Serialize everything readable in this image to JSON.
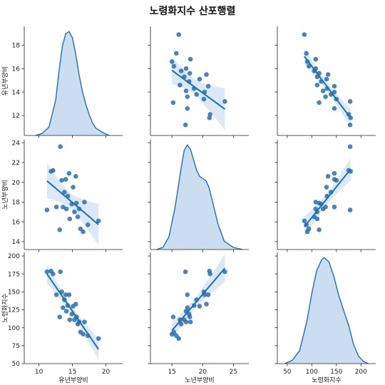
{
  "chart_data": {
    "type": "scatter",
    "title": "노령화지수 산포행렬",
    "variables": [
      "유년부양비",
      "노년부양비",
      "노령화지수"
    ],
    "axes": {
      "유년부양비": {
        "lim": [
          10.3,
          19.6
        ],
        "ticks": [
          12,
          14,
          16,
          18
        ],
        "xlim": [
          7.8,
          22.5
        ],
        "xticks": [
          10,
          15,
          20
        ]
      },
      "노년부양비": {
        "lim": [
          13.2,
          24.3
        ],
        "ticks": [
          14,
          16,
          18,
          20,
          22,
          24
        ],
        "xlim": [
          11.5,
          27.5
        ],
        "xticks": [
          15,
          20,
          25
        ]
      },
      "노령화지수": {
        "lim": [
          50,
          205
        ],
        "ticks": [
          50,
          75,
          100,
          125,
          150,
          175,
          200
        ],
        "xlim": [
          30,
          230
        ],
        "xticks": [
          50,
          100,
          150,
          200
        ]
      }
    },
    "points": [
      {
        "유년부양비": 11.2,
        "노년부양비": 17.2,
        "노령화지수": 178
      },
      {
        "유년부양비": 11.8,
        "노년부양비": 21.1,
        "노령화지수": 179
      },
      {
        "유년부양비": 12.1,
        "노년부양비": 21.2,
        "노령화지수": 175
      },
      {
        "유년부양비": 12.6,
        "노년부양비": 17.5,
        "노령화지수": 146
      },
      {
        "유년부양비": 13.1,
        "노년부양비": 15.2,
        "노령화지수": 115
      },
      {
        "유년부양비": 13.2,
        "노년부양비": 23.6,
        "노령화지수": 178
      },
      {
        "유년부양비": 13.4,
        "노년부양비": 20.2,
        "노령화지수": 150
      },
      {
        "유년부양비": 13.6,
        "노년부양비": 17.5,
        "노령화지수": 128
      },
      {
        "유년부양비": 13.8,
        "노년부양비": 19.0,
        "노령화지수": 139
      },
      {
        "유년부양비": 14.0,
        "노년부양비": 20.3,
        "노령화지수": 146
      },
      {
        "유년부양비": 14.1,
        "노년부양비": 17.3,
        "노령화지수": 123
      },
      {
        "유년부양비": 14.3,
        "노년부양비": 18.6,
        "노령화지수": 131
      },
      {
        "유년부양비": 14.5,
        "노년부양비": 20.9,
        "노령화지수": 146
      },
      {
        "유년부양비": 14.6,
        "노년부양비": 16.3,
        "노령화지수": 111
      },
      {
        "유년부양비": 14.9,
        "노년부양비": 17.8,
        "노령화지수": 119
      },
      {
        "유년부양비": 15.1,
        "노년부양비": 19.5,
        "노령화지수": 130
      },
      {
        "유년부양비": 15.3,
        "노년부양비": 17.0,
        "노령화지수": 111
      },
      {
        "유년부양비": 15.5,
        "노년부양비": 20.6,
        "노령화지수": 133
      },
      {
        "유년부양비": 15.6,
        "노년부양비": 17.9,
        "노령화지수": 115
      },
      {
        "유년부양비": 15.8,
        "노년부양비": 16.5,
        "노령화지수": 105
      },
      {
        "유년부양비": 16.0,
        "노년부양비": 17.3,
        "노령화지수": 108
      },
      {
        "유년부양비": 16.2,
        "노년부양비": 15.3,
        "노령화지수": 94
      },
      {
        "유년부양비": 16.6,
        "노년부양비": 15.0,
        "노령화지수": 91
      },
      {
        "유년부양비": 16.8,
        "노년부양비": 18.0,
        "노령화지수": 108
      },
      {
        "유년부양비": 17.3,
        "노년부양비": 15.7,
        "노령화지수": 89
      },
      {
        "유년부양비": 18.9,
        "노년부양비": 16.1,
        "노령화지수": 85
      }
    ],
    "kde": {
      "유년부양비": [
        [
          9.5,
          0.0
        ],
        [
          10.5,
          0.02
        ],
        [
          11.5,
          0.08
        ],
        [
          12.5,
          0.34
        ],
        [
          13.0,
          0.62
        ],
        [
          13.5,
          0.86
        ],
        [
          14.0,
          0.98
        ],
        [
          14.5,
          1.0
        ],
        [
          15.0,
          0.94
        ],
        [
          15.5,
          0.78
        ],
        [
          16.0,
          0.58
        ],
        [
          16.5,
          0.42
        ],
        [
          17.0,
          0.3
        ],
        [
          17.5,
          0.2
        ],
        [
          18.0,
          0.12
        ],
        [
          18.5,
          0.07
        ],
        [
          19.5,
          0.03
        ],
        [
          20.5,
          0.0
        ]
      ],
      "노년부양비": [
        [
          12.5,
          0.0
        ],
        [
          13.5,
          0.02
        ],
        [
          14.5,
          0.12
        ],
        [
          15.5,
          0.4
        ],
        [
          16.5,
          0.78
        ],
        [
          17.0,
          0.95
        ],
        [
          17.5,
          1.0
        ],
        [
          18.0,
          0.96
        ],
        [
          18.5,
          0.86
        ],
        [
          19.0,
          0.76
        ],
        [
          19.5,
          0.7
        ],
        [
          20.0,
          0.68
        ],
        [
          20.5,
          0.66
        ],
        [
          21.0,
          0.6
        ],
        [
          21.5,
          0.48
        ],
        [
          22.5,
          0.24
        ],
        [
          23.5,
          0.08
        ],
        [
          25.0,
          0.02
        ],
        [
          26.5,
          0.0
        ]
      ],
      "노령화지수": [
        [
          45,
          0.0
        ],
        [
          60,
          0.03
        ],
        [
          75,
          0.12
        ],
        [
          90,
          0.4
        ],
        [
          100,
          0.66
        ],
        [
          110,
          0.88
        ],
        [
          120,
          0.98
        ],
        [
          125,
          1.0
        ],
        [
          135,
          0.96
        ],
        [
          145,
          0.82
        ],
        [
          155,
          0.64
        ],
        [
          165,
          0.5
        ],
        [
          175,
          0.36
        ],
        [
          185,
          0.18
        ],
        [
          195,
          0.07
        ],
        [
          205,
          0.02
        ],
        [
          215,
          0.0
        ]
      ]
    },
    "grid": false,
    "legend": "none"
  }
}
